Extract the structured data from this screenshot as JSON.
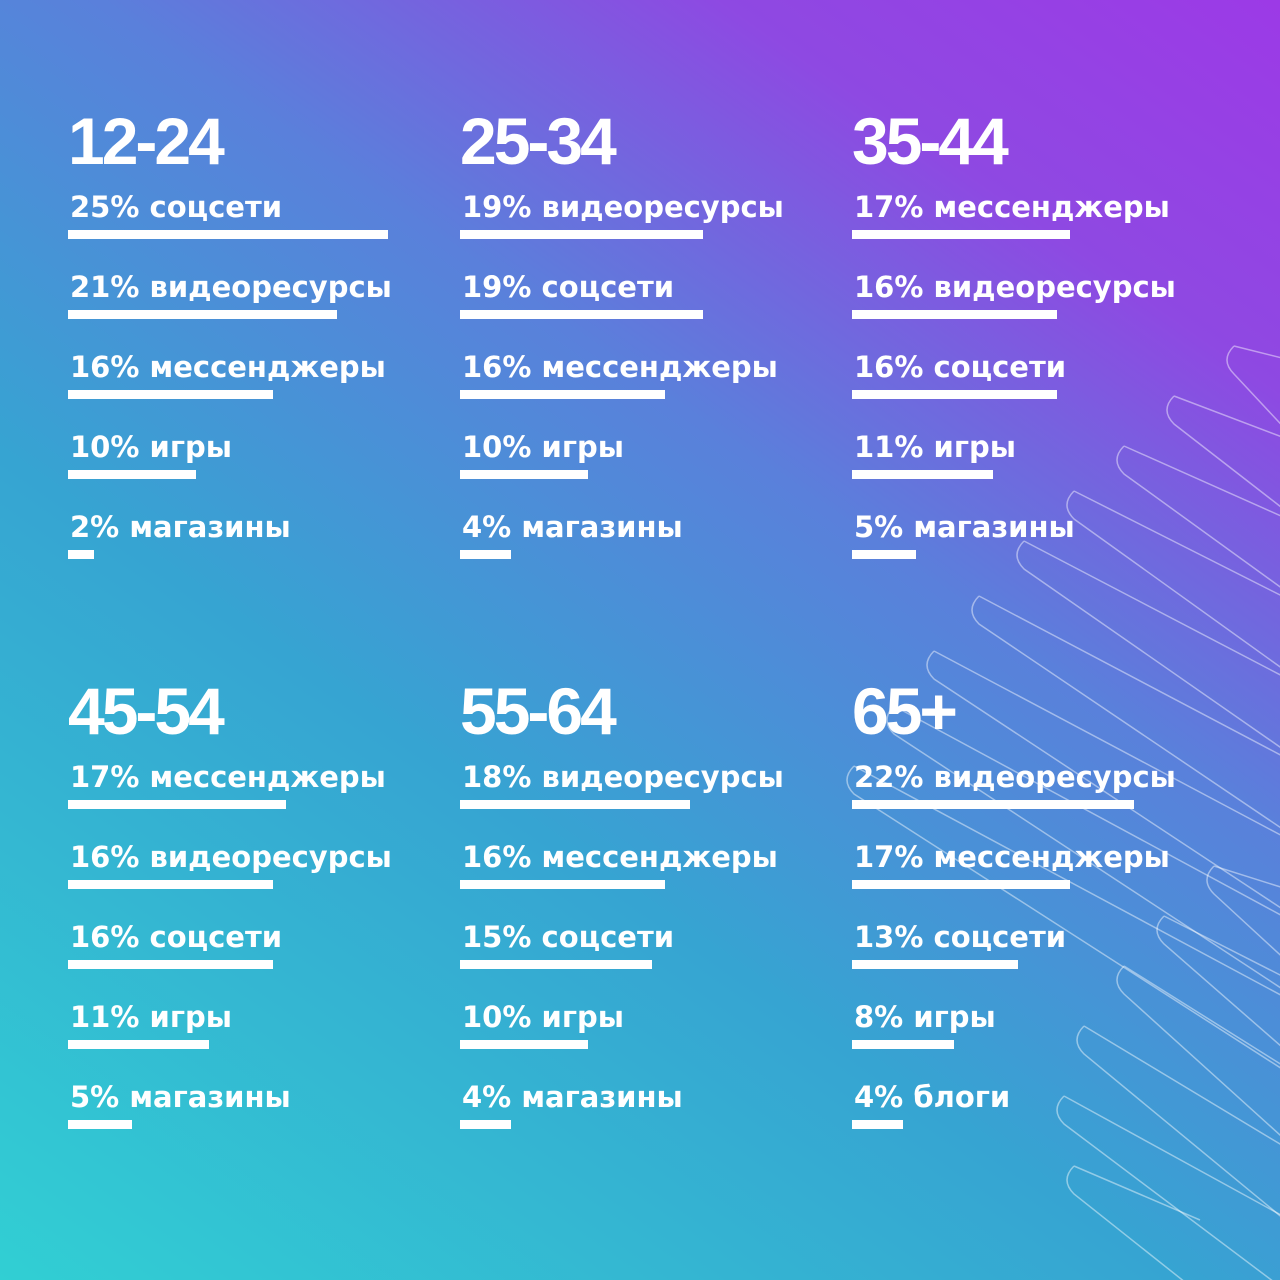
{
  "colors": {
    "gradient_left": "#31cfd3",
    "gradient_mid": "#36a4d2",
    "gradient_right": "#9c3ae6",
    "text": "#ffffff",
    "bar": "#ffffff"
  },
  "chart_data": {
    "type": "bar",
    "orientation": "horizontal",
    "unit": "%",
    "groups": [
      {
        "age": "12-24",
        "items": [
          {
            "label": "25% соцсети",
            "category": "соцсети",
            "value": 25
          },
          {
            "label": "21% видеоресурсы",
            "category": "видеоресурсы",
            "value": 21
          },
          {
            "label": "16% мессенджеры",
            "category": "мессенджеры",
            "value": 16
          },
          {
            "label": "10% игры",
            "category": "игры",
            "value": 10
          },
          {
            "label": "2% магазины",
            "category": "магазины",
            "value": 2
          }
        ]
      },
      {
        "age": "25-34",
        "items": [
          {
            "label": "19% видеоресурсы",
            "category": "видеоресурсы",
            "value": 19
          },
          {
            "label": "19% соцсети",
            "category": "соцсети",
            "value": 19
          },
          {
            "label": "16% мессенджеры",
            "category": "мессенджеры",
            "value": 16
          },
          {
            "label": "10% игры",
            "category": "игры",
            "value": 10
          },
          {
            "label": "4% магазины",
            "category": "магазины",
            "value": 4
          }
        ]
      },
      {
        "age": "35-44",
        "items": [
          {
            "label": "17% мессенджеры",
            "category": "мессенджеры",
            "value": 17
          },
          {
            "label": "16% видеоресурсы",
            "category": "видеоресурсы",
            "value": 16
          },
          {
            "label": "16% соцсети",
            "category": "соцсети",
            "value": 16
          },
          {
            "label": "11% игры",
            "category": "игры",
            "value": 11
          },
          {
            "label": "5% магазины",
            "category": "магазины",
            "value": 5
          }
        ]
      },
      {
        "age": "45-54",
        "items": [
          {
            "label": "17% мессенджеры",
            "category": "мессенджеры",
            "value": 17
          },
          {
            "label": "16% видеоресурсы",
            "category": "видеоресурсы",
            "value": 16
          },
          {
            "label": "16% соцсети",
            "category": "соцсети",
            "value": 16
          },
          {
            "label": "11% игры",
            "category": "игры",
            "value": 11
          },
          {
            "label": "5% магазины",
            "category": "магазины",
            "value": 5
          }
        ]
      },
      {
        "age": "55-64",
        "items": [
          {
            "label": "18% видеоресурсы",
            "category": "видеоресурсы",
            "value": 18
          },
          {
            "label": "16% мессенджеры",
            "category": "мессенджеры",
            "value": 16
          },
          {
            "label": "15% соцсети",
            "category": "соцсети",
            "value": 15
          },
          {
            "label": "10% игры",
            "category": "игры",
            "value": 10
          },
          {
            "label": "4% магазины",
            "category": "магазины",
            "value": 4
          }
        ]
      },
      {
        "age": "65+",
        "items": [
          {
            "label": "22% видеоресурсы",
            "category": "видеоресурсы",
            "value": 22
          },
          {
            "label": "17% мессенджеры",
            "category": "мессенджеры",
            "value": 17
          },
          {
            "label": "13% соцсети",
            "category": "соцсети",
            "value": 13
          },
          {
            "label": "8% игры",
            "category": "игры",
            "value": 8
          },
          {
            "label": "4% блоги",
            "category": "блоги",
            "value": 4
          }
        ]
      }
    ]
  }
}
